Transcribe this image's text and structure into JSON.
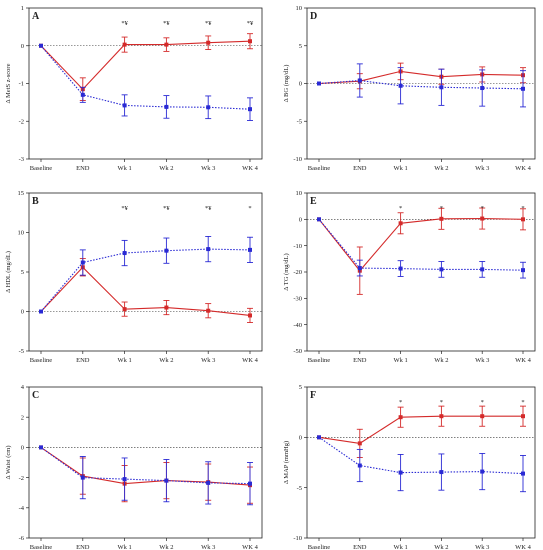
{
  "chart_data": [
    {
      "type": "line",
      "panel": "A",
      "ylabel": "Δ MetS z-score",
      "ylim": [
        -3,
        1
      ],
      "yticks": [
        -3,
        -2,
        -1,
        0,
        1
      ],
      "categories": [
        "Baseline",
        "END",
        "Wk 1",
        "Wk 2",
        "Wk 3",
        "WK 4"
      ],
      "significance": [
        "",
        "",
        "*¥",
        "*¥",
        "*¥",
        "*¥"
      ],
      "series": [
        {
          "color": "#d42a2a",
          "style": "solid",
          "values": [
            0,
            -1.15,
            0.03,
            0.03,
            0.08,
            0.12
          ],
          "errors": [
            0,
            0.3,
            0.2,
            0.18,
            0.18,
            0.2
          ]
        },
        {
          "color": "#2a2ad4",
          "style": "dotted",
          "values": [
            0,
            -1.3,
            -1.58,
            -1.62,
            -1.63,
            -1.68
          ],
          "errors": [
            0,
            0.2,
            0.28,
            0.3,
            0.3,
            0.3
          ]
        }
      ]
    },
    {
      "type": "line",
      "panel": "B",
      "ylabel": "Δ HDL (mg/dL)",
      "ylim": [
        -5,
        15
      ],
      "yticks": [
        -5,
        0,
        5,
        10,
        15
      ],
      "categories": [
        "Baseline",
        "END",
        "Wk 1",
        "Wk 2",
        "Wk 3",
        "WK 4"
      ],
      "significance": [
        "",
        "",
        "*¥",
        "*¥",
        "*¥",
        "*"
      ],
      "series": [
        {
          "color": "#d42a2a",
          "style": "solid",
          "values": [
            0,
            5.6,
            0.3,
            0.5,
            0.1,
            -0.5
          ],
          "errors": [
            0,
            1.1,
            0.9,
            0.9,
            0.9,
            0.9
          ]
        },
        {
          "color": "#2a2ad4",
          "style": "dotted",
          "values": [
            0,
            6.2,
            7.4,
            7.7,
            7.9,
            7.8
          ],
          "errors": [
            0,
            1.6,
            1.6,
            1.6,
            1.6,
            1.6
          ]
        }
      ]
    },
    {
      "type": "line",
      "panel": "C",
      "ylabel": "Δ Waist (cm)",
      "ylim": [
        -6,
        4
      ],
      "yticks": [
        -6,
        -4,
        -2,
        0,
        2,
        4
      ],
      "categories": [
        "Baseline",
        "END",
        "Wk 1",
        "Wk 2",
        "Wk 3",
        "WK 4"
      ],
      "significance": [
        "",
        "",
        "",
        "",
        "",
        ""
      ],
      "series": [
        {
          "color": "#d42a2a",
          "style": "solid",
          "values": [
            0,
            -1.9,
            -2.4,
            -2.2,
            -2.3,
            -2.5
          ],
          "errors": [
            0,
            1.2,
            1.2,
            1.2,
            1.2,
            1.2
          ]
        },
        {
          "color": "#2a2ad4",
          "style": "dotted",
          "values": [
            0,
            -2.0,
            -2.1,
            -2.2,
            -2.35,
            -2.4
          ],
          "errors": [
            0,
            1.4,
            1.4,
            1.4,
            1.4,
            1.4
          ]
        }
      ]
    },
    {
      "type": "line",
      "panel": "D",
      "ylabel": "Δ BG (mg/dL)",
      "ylim": [
        -10,
        10
      ],
      "yticks": [
        -10,
        -5,
        0,
        5,
        10
      ],
      "categories": [
        "Baseline",
        "END",
        "Wk 1",
        "Wk 2",
        "Wk 3",
        "WK 4"
      ],
      "significance": [
        "",
        "",
        "",
        "",
        "",
        ""
      ],
      "series": [
        {
          "color": "#d42a2a",
          "style": "solid",
          "values": [
            0,
            0.3,
            1.6,
            0.9,
            1.2,
            1.1
          ],
          "errors": [
            0,
            1.0,
            1.1,
            1.0,
            1.0,
            1.0
          ]
        },
        {
          "color": "#2a2ad4",
          "style": "dotted",
          "values": [
            0,
            0.4,
            -0.3,
            -0.5,
            -0.6,
            -0.7
          ],
          "errors": [
            0,
            2.2,
            2.4,
            2.4,
            2.4,
            2.4
          ]
        }
      ]
    },
    {
      "type": "line",
      "panel": "E",
      "ylabel": "Δ TG (mg/dL)",
      "ylim": [
        -50,
        10
      ],
      "yticks": [
        -50,
        -40,
        -30,
        -20,
        -10,
        0,
        10
      ],
      "categories": [
        "Baseline",
        "END",
        "Wk 1",
        "Wk 2",
        "Wk 3",
        "WK 4"
      ],
      "significance": [
        "",
        "",
        "*",
        "*",
        "*",
        "*"
      ],
      "series": [
        {
          "color": "#d42a2a",
          "style": "solid",
          "values": [
            0,
            -19.5,
            -1.5,
            0.2,
            0.3,
            0
          ],
          "errors": [
            0,
            9,
            4,
            4,
            4,
            4
          ]
        },
        {
          "color": "#2a2ad4",
          "style": "dotted",
          "values": [
            0,
            -18.5,
            -18.7,
            -19,
            -19,
            -19.3
          ],
          "errors": [
            0,
            3,
            3,
            3,
            3,
            3
          ]
        }
      ]
    },
    {
      "type": "line",
      "panel": "F",
      "ylabel": "Δ MAP (mmHg)",
      "ylim": [
        -10,
        5
      ],
      "yticks": [
        -10,
        -5,
        0,
        5
      ],
      "categories": [
        "Baseline",
        "END",
        "Wk 1",
        "Wk 2",
        "Wk 3",
        "WK 4"
      ],
      "significance": [
        "",
        "",
        "*",
        "*",
        "*",
        "*"
      ],
      "series": [
        {
          "color": "#d42a2a",
          "style": "solid",
          "values": [
            0,
            -0.6,
            2.0,
            2.1,
            2.1,
            2.1
          ],
          "errors": [
            0,
            1.4,
            1.0,
            1.0,
            1.0,
            1.0
          ]
        },
        {
          "color": "#2a2ad4",
          "style": "dotted",
          "values": [
            0,
            -2.8,
            -3.5,
            -3.45,
            -3.4,
            -3.6
          ],
          "errors": [
            0,
            1.6,
            1.8,
            1.8,
            1.8,
            1.8
          ]
        }
      ]
    }
  ]
}
